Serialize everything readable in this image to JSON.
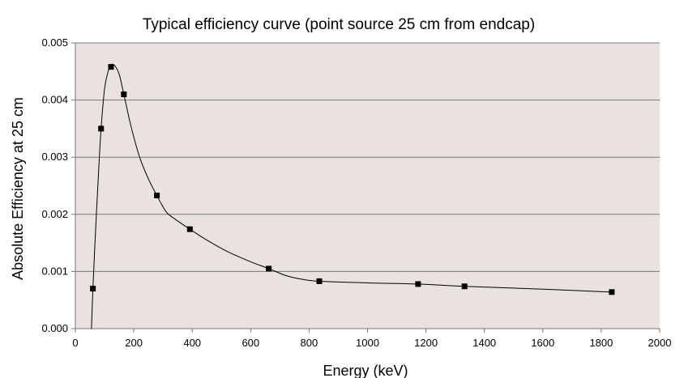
{
  "chart_data": {
    "type": "scatter",
    "title": "Typical efficiency curve (point source 25 cm from endcap)",
    "xlabel": "Energy (keV)",
    "ylabel": "Absolute Efficiency at 25 cm",
    "xlim": [
      0,
      2000
    ],
    "ylim": [
      0,
      0.005
    ],
    "x_ticks": [
      "0",
      "200",
      "400",
      "600",
      "800",
      "1000",
      "1200",
      "1400",
      "1600",
      "1800",
      "2000"
    ],
    "y_ticks": [
      "0.000",
      "0.001",
      "0.002",
      "0.003",
      "0.004",
      "0.005"
    ],
    "grid": "horizontal",
    "legend": "none",
    "plot_background": "#eae2de",
    "series": [
      {
        "points": [
          {
            "x": 60,
            "y": 0.0007
          },
          {
            "x": 88,
            "y": 0.0035
          },
          {
            "x": 122,
            "y": 0.00458
          },
          {
            "x": 166,
            "y": 0.0041
          },
          {
            "x": 279,
            "y": 0.00233
          },
          {
            "x": 392,
            "y": 0.00174
          },
          {
            "x": 662,
            "y": 0.00105
          },
          {
            "x": 835,
            "y": 0.00083
          },
          {
            "x": 1173,
            "y": 0.00078
          },
          {
            "x": 1332,
            "y": 0.00074
          },
          {
            "x": 1836,
            "y": 0.00064
          }
        ],
        "curve": [
          {
            "x": 55,
            "y": 0.0
          },
          {
            "x": 60,
            "y": 0.0007
          },
          {
            "x": 70,
            "y": 0.0018
          },
          {
            "x": 80,
            "y": 0.0028
          },
          {
            "x": 88,
            "y": 0.0035
          },
          {
            "x": 100,
            "y": 0.0042
          },
          {
            "x": 112,
            "y": 0.0045
          },
          {
            "x": 122,
            "y": 0.00462
          },
          {
            "x": 135,
            "y": 0.0046
          },
          {
            "x": 150,
            "y": 0.00445
          },
          {
            "x": 166,
            "y": 0.0041
          },
          {
            "x": 190,
            "y": 0.00355
          },
          {
            "x": 220,
            "y": 0.003
          },
          {
            "x": 250,
            "y": 0.00262
          },
          {
            "x": 279,
            "y": 0.00233
          },
          {
            "x": 310,
            "y": 0.00205
          },
          {
            "x": 340,
            "y": 0.00192
          },
          {
            "x": 392,
            "y": 0.00174
          },
          {
            "x": 450,
            "y": 0.00155
          },
          {
            "x": 520,
            "y": 0.00135
          },
          {
            "x": 600,
            "y": 0.00117
          },
          {
            "x": 662,
            "y": 0.00105
          },
          {
            "x": 720,
            "y": 0.00093
          },
          {
            "x": 780,
            "y": 0.00086
          },
          {
            "x": 835,
            "y": 0.00083
          },
          {
            "x": 1000,
            "y": 0.0008
          },
          {
            "x": 1173,
            "y": 0.00078
          },
          {
            "x": 1332,
            "y": 0.00074
          },
          {
            "x": 1600,
            "y": 0.00069
          },
          {
            "x": 1836,
            "y": 0.00064
          }
        ]
      }
    ]
  }
}
